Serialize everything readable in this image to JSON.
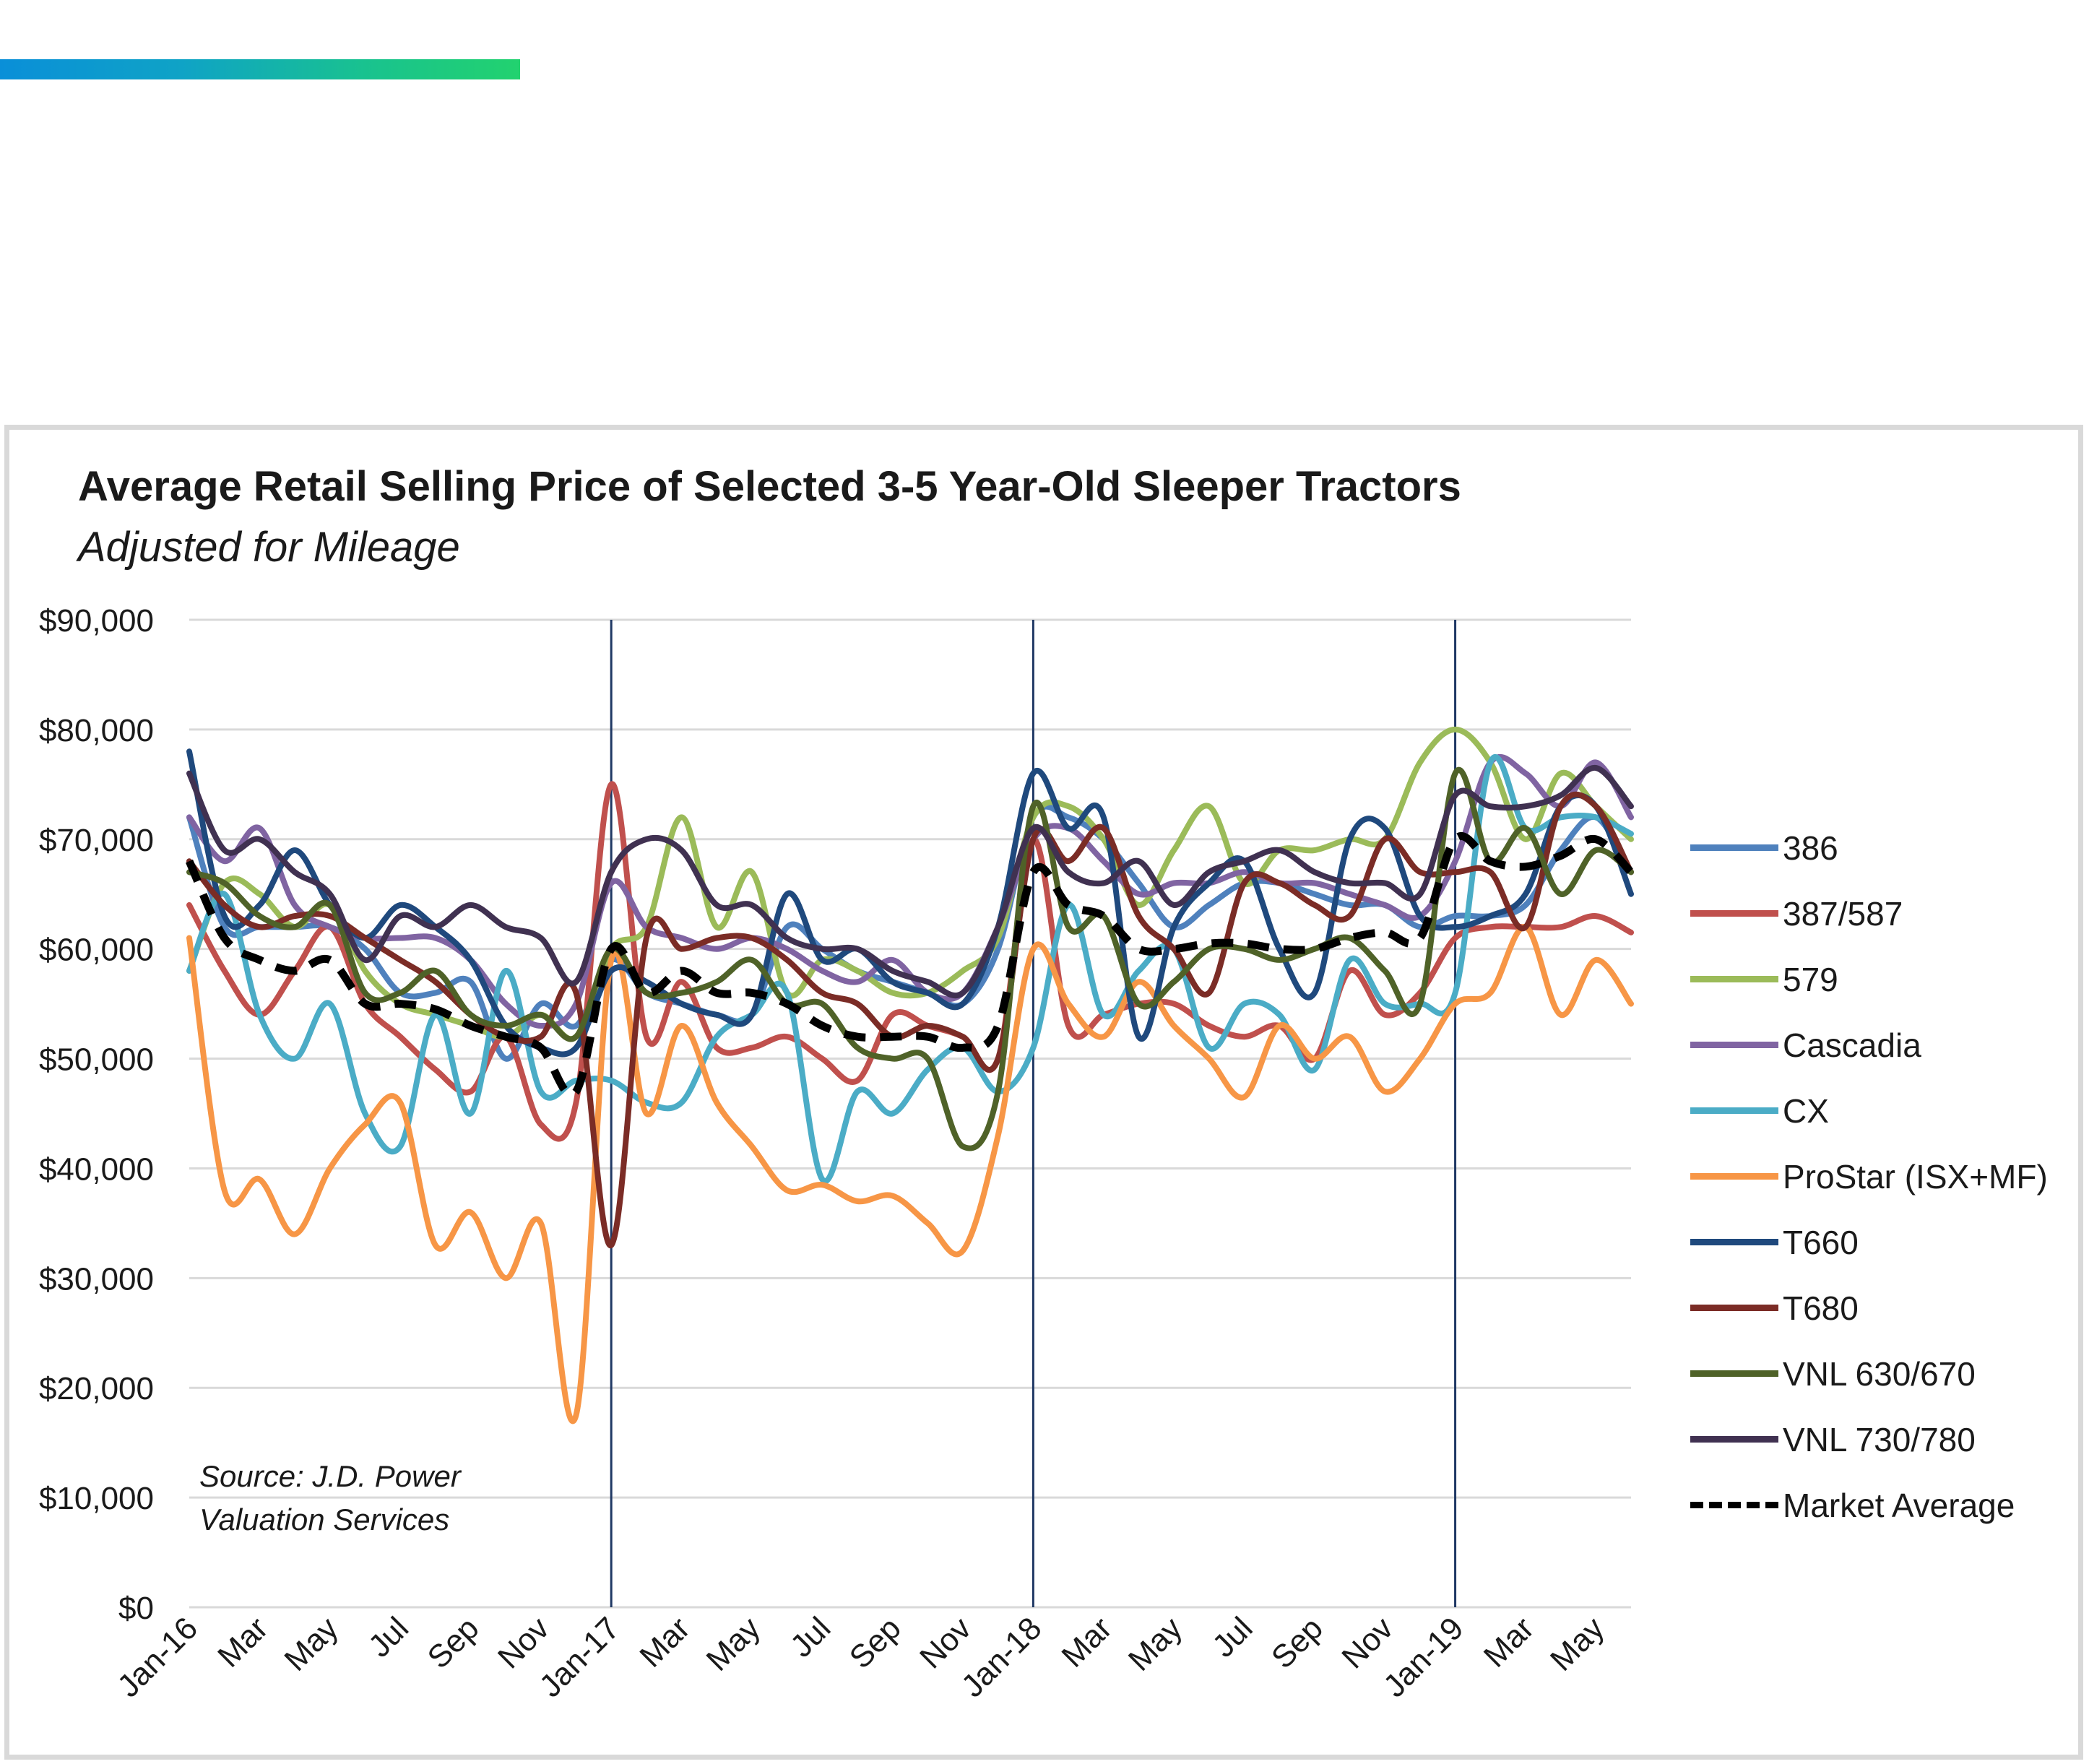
{
  "chart_data": {
    "type": "line",
    "title": "Average Retail Selling Price of Selected 3-5 Year-Old Sleeper Tractors",
    "subtitle": "Adjusted for Mileage",
    "source": [
      "Source: J.D. Power",
      "Valuation Services"
    ],
    "ylim": [
      0,
      90000
    ],
    "y_ticks": [
      "$0",
      "$10,000",
      "$20,000",
      "$30,000",
      "$40,000",
      "$50,000",
      "$60,000",
      "$70,000",
      "$80,000",
      "$90,000"
    ],
    "x_tick_labels": [
      "Jan-16",
      "Mar",
      "May",
      "Jul",
      "Sep",
      "Nov",
      "Jan-17",
      "Mar",
      "May",
      "Jul",
      "Sep",
      "Nov",
      "Jan-18",
      "Mar",
      "May",
      "Jul",
      "Sep",
      "Nov",
      "Jan-19",
      "Mar",
      "May"
    ],
    "x_months": [
      "Jan-16",
      "Feb-16",
      "Mar-16",
      "Apr-16",
      "May-16",
      "Jun-16",
      "Jul-16",
      "Aug-16",
      "Sep-16",
      "Oct-16",
      "Nov-16",
      "Dec-16",
      "Jan-17",
      "Feb-17",
      "Mar-17",
      "Apr-17",
      "May-17",
      "Jun-17",
      "Jul-17",
      "Aug-17",
      "Sep-17",
      "Oct-17",
      "Nov-17",
      "Dec-17",
      "Jan-18",
      "Feb-18",
      "Mar-18",
      "Apr-18",
      "May-18",
      "Jun-18",
      "Jul-18",
      "Aug-18",
      "Sep-18",
      "Oct-18",
      "Nov-18",
      "Dec-18",
      "Jan-19",
      "Feb-19",
      "Mar-19",
      "Apr-19",
      "May-19",
      "Jun-19"
    ],
    "year_markers": [
      "Jan-17",
      "Jan-18",
      "Jan-19"
    ],
    "grid": true,
    "legend_position": "right",
    "series": [
      {
        "name": "386",
        "color": "#4f81bd",
        "style": "solid",
        "values": [
          72000,
          62000,
          62000,
          62000,
          62000,
          60000,
          56000,
          56000,
          57000,
          50000,
          55000,
          53000,
          59000,
          56000,
          55000,
          54000,
          54000,
          62000,
          60000,
          58000,
          57000,
          56000,
          55000,
          60000,
          72000,
          72000,
          70000,
          66000,
          62000,
          64000,
          66000,
          66000,
          65000,
          64000,
          64000,
          62000,
          63000,
          63000,
          64000,
          69000,
          72000,
          67000
        ]
      },
      {
        "name": "387/587",
        "color": "#c0504d",
        "style": "solid",
        "values": [
          64000,
          58000,
          54000,
          58000,
          62000,
          55000,
          52000,
          49000,
          47000,
          52000,
          44000,
          46000,
          75000,
          52000,
          57000,
          51000,
          51000,
          52000,
          50000,
          48000,
          54000,
          53000,
          52000,
          50000,
          70000,
          53000,
          54000,
          55000,
          55000,
          53000,
          52000,
          53000,
          50000,
          58000,
          54000,
          56000,
          61000,
          62000,
          62000,
          62000,
          63000,
          61500
        ]
      },
      {
        "name": "579",
        "color": "#9bbb59",
        "style": "solid",
        "values": [
          58000,
          66000,
          65000,
          62000,
          64000,
          58000,
          55000,
          54000,
          53000,
          52000,
          54000,
          52000,
          60000,
          62000,
          72000,
          62000,
          67000,
          56000,
          59000,
          58000,
          56000,
          56000,
          58000,
          61000,
          72000,
          73000,
          70000,
          64000,
          69000,
          73000,
          66000,
          69000,
          69000,
          70000,
          70000,
          77000,
          80000,
          77000,
          70000,
          76000,
          73000,
          70000
        ]
      },
      {
        "name": "Cascadia",
        "color": "#8064a2",
        "style": "solid",
        "values": [
          72000,
          68000,
          71000,
          64000,
          62000,
          61000,
          61000,
          61000,
          59000,
          55000,
          53000,
          55000,
          66000,
          62000,
          61000,
          60000,
          61000,
          60000,
          58000,
          57000,
          59000,
          56000,
          56000,
          62000,
          70000,
          71000,
          68000,
          65000,
          66000,
          66000,
          67000,
          66000,
          66000,
          65000,
          64000,
          63000,
          68000,
          77000,
          76000,
          73000,
          77000,
          72000
        ]
      },
      {
        "name": "CX",
        "color": "#4bacc6",
        "style": "solid",
        "values": [
          58000,
          65000,
          54000,
          50000,
          55000,
          45000,
          42000,
          54000,
          45000,
          58000,
          47000,
          48000,
          48000,
          46000,
          46000,
          52000,
          54000,
          56000,
          39000,
          47000,
          45000,
          49000,
          51000,
          47000,
          51000,
          64000,
          54000,
          58000,
          60000,
          51000,
          55000,
          54000,
          49000,
          59000,
          55000,
          55000,
          56000,
          77000,
          71000,
          72000,
          72000,
          70500
        ]
      },
      {
        "name": "ProStar (ISX+MF)",
        "color": "#f79646",
        "style": "solid",
        "values": [
          61000,
          38000,
          39000,
          34000,
          40000,
          44000,
          46000,
          33000,
          36000,
          30000,
          35000,
          17500,
          59000,
          45000,
          53000,
          46000,
          42000,
          38000,
          38500,
          37000,
          37500,
          35000,
          32500,
          43000,
          60000,
          55000,
          52000,
          57000,
          53000,
          50000,
          46500,
          53000,
          50000,
          52000,
          47000,
          50000,
          55000,
          56000,
          62000,
          54000,
          59000,
          55000
        ]
      },
      {
        "name": "T660",
        "color": "#1f497d",
        "style": "solid",
        "values": [
          78000,
          63000,
          64000,
          69000,
          64000,
          61000,
          64000,
          62000,
          59000,
          53000,
          51000,
          51000,
          58000,
          57000,
          55000,
          54000,
          54000,
          65000,
          59000,
          60000,
          57000,
          56000,
          55000,
          62000,
          76000,
          71000,
          72000,
          52000,
          62000,
          66000,
          68000,
          60000,
          56000,
          70000,
          71000,
          63000,
          62000,
          63000,
          65000,
          73000,
          73000,
          65000
        ]
      },
      {
        "name": "T680",
        "color": "#7b2c26",
        "style": "solid",
        "values": [
          68000,
          64000,
          62000,
          63000,
          63000,
          61000,
          59000,
          57000,
          54000,
          52000,
          52000,
          56000,
          33000,
          61000,
          60000,
          61000,
          61000,
          59000,
          56000,
          55000,
          52000,
          53000,
          52000,
          50000,
          70000,
          68000,
          71000,
          63000,
          60000,
          56000,
          66000,
          66000,
          64000,
          63000,
          70000,
          67000,
          67000,
          67000,
          62000,
          73000,
          73000,
          67000
        ]
      },
      {
        "name": "VNL 630/670",
        "color": "#4f6228",
        "style": "solid",
        "values": [
          67000,
          66000,
          63000,
          62000,
          64000,
          56000,
          56000,
          58000,
          54000,
          53000,
          54000,
          52000,
          60000,
          56000,
          56000,
          57000,
          59000,
          55000,
          55000,
          51000,
          50000,
          50000,
          42000,
          47000,
          73000,
          62000,
          63000,
          55000,
          57000,
          60000,
          60000,
          59000,
          60000,
          61000,
          58000,
          55000,
          76000,
          68000,
          71000,
          65000,
          69000,
          67000
        ]
      },
      {
        "name": "VNL 730/780",
        "color": "#403151",
        "style": "solid",
        "values": [
          76000,
          69000,
          70000,
          67000,
          65000,
          59000,
          63000,
          62000,
          64000,
          62000,
          61000,
          57000,
          67000,
          70000,
          69000,
          64000,
          64000,
          61000,
          60000,
          60000,
          58000,
          57000,
          56000,
          62000,
          71000,
          67000,
          66000,
          68000,
          64000,
          67000,
          68000,
          69000,
          67000,
          66000,
          66000,
          65000,
          74000,
          73000,
          73000,
          74000,
          76500,
          73000
        ]
      },
      {
        "name": "Market Average",
        "color": "#000000",
        "style": "dashed",
        "values": [
          68000,
          61000,
          59000,
          58000,
          59000,
          55000,
          55000,
          54500,
          53000,
          52000,
          51000,
          47000,
          60000,
          56000,
          58000,
          56000,
          56000,
          55000,
          53000,
          52000,
          52000,
          52000,
          51000,
          53000,
          67000,
          64000,
          63000,
          60000,
          60000,
          60500,
          60500,
          60000,
          60000,
          61000,
          61500,
          61000,
          70000,
          68000,
          67500,
          68500,
          70000,
          67000
        ]
      }
    ]
  }
}
